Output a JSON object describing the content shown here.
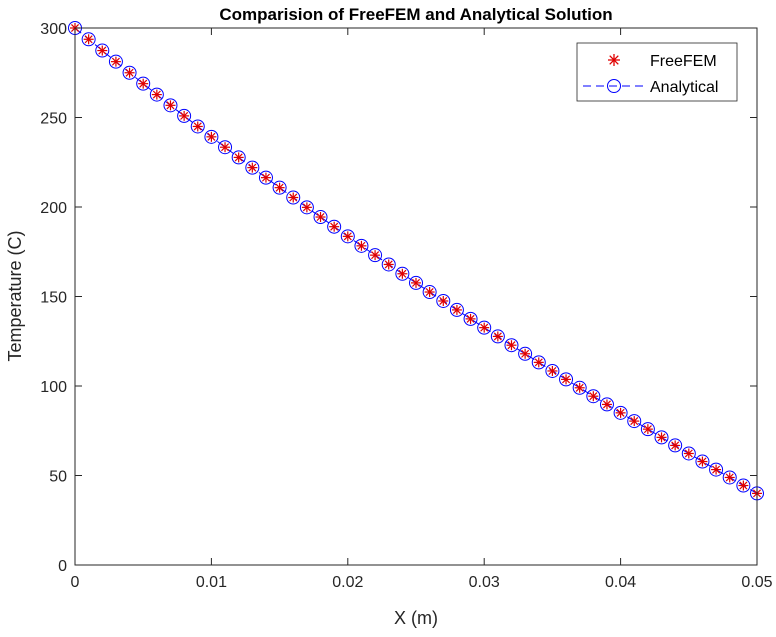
{
  "chart_data": {
    "type": "line",
    "title": "Comparision of FreeFEM and Analytical Solution",
    "xlabel": "X (m)",
    "ylabel": "Temperature (C)",
    "xlim": [
      0,
      0.05
    ],
    "ylim": [
      0,
      300
    ],
    "xticks": [
      "0",
      "0.01",
      "0.02",
      "0.03",
      "0.04",
      "0.05"
    ],
    "yticks": [
      "0",
      "50",
      "100",
      "150",
      "200",
      "250",
      "300"
    ],
    "grid": false,
    "legend_position": "top-right",
    "series": [
      {
        "name": "FreeFEM",
        "marker": "asterisk",
        "line": "none",
        "color": "#e00000",
        "x": [
          0,
          0.001,
          0.002,
          0.003,
          0.004,
          0.005,
          0.006,
          0.007,
          0.008,
          0.009,
          0.01,
          0.011,
          0.012,
          0.013,
          0.014,
          0.015,
          0.016,
          0.017,
          0.018,
          0.019,
          0.02,
          0.021,
          0.022,
          0.023,
          0.024,
          0.025,
          0.026,
          0.027,
          0.028,
          0.029,
          0.03,
          0.031,
          0.032,
          0.033,
          0.034,
          0.035,
          0.036,
          0.037,
          0.038,
          0.039,
          0.04,
          0.041,
          0.042,
          0.043,
          0.044,
          0.045,
          0.046,
          0.047,
          0.048,
          0.049,
          0.05
        ],
        "y": [
          300,
          293.7,
          287.4,
          281.2,
          275.0,
          268.9,
          262.8,
          256.8,
          250.9,
          245.0,
          239.2,
          233.4,
          227.7,
          222.0,
          216.4,
          210.8,
          205.3,
          199.8,
          194.4,
          189.0,
          183.6,
          178.3,
          173.1,
          167.9,
          162.7,
          157.6,
          152.5,
          147.5,
          142.5,
          137.5,
          132.6,
          127.7,
          122.8,
          118.0,
          113.2,
          108.4,
          103.7,
          99.0,
          94.3,
          89.7,
          85.0,
          80.4,
          75.9,
          71.3,
          66.8,
          62.3,
          57.8,
          53.3,
          48.9,
          44.4,
          40.0
        ]
      },
      {
        "name": "Analytical",
        "marker": "circle",
        "line": "dashed",
        "color": "#0000ff",
        "x": [
          0,
          0.001,
          0.002,
          0.003,
          0.004,
          0.005,
          0.006,
          0.007,
          0.008,
          0.009,
          0.01,
          0.011,
          0.012,
          0.013,
          0.014,
          0.015,
          0.016,
          0.017,
          0.018,
          0.019,
          0.02,
          0.021,
          0.022,
          0.023,
          0.024,
          0.025,
          0.026,
          0.027,
          0.028,
          0.029,
          0.03,
          0.031,
          0.032,
          0.033,
          0.034,
          0.035,
          0.036,
          0.037,
          0.038,
          0.039,
          0.04,
          0.041,
          0.042,
          0.043,
          0.044,
          0.045,
          0.046,
          0.047,
          0.048,
          0.049,
          0.05
        ],
        "y": [
          300,
          293.7,
          287.4,
          281.2,
          275.0,
          268.9,
          262.8,
          256.8,
          250.9,
          245.0,
          239.2,
          233.4,
          227.7,
          222.0,
          216.4,
          210.8,
          205.3,
          199.8,
          194.4,
          189.0,
          183.6,
          178.3,
          173.1,
          167.9,
          162.7,
          157.6,
          152.5,
          147.5,
          142.5,
          137.5,
          132.6,
          127.7,
          122.8,
          118.0,
          113.2,
          108.4,
          103.7,
          99.0,
          94.3,
          89.7,
          85.0,
          80.4,
          75.9,
          71.3,
          66.8,
          62.3,
          57.8,
          53.3,
          48.9,
          44.4,
          40.0
        ]
      }
    ]
  }
}
